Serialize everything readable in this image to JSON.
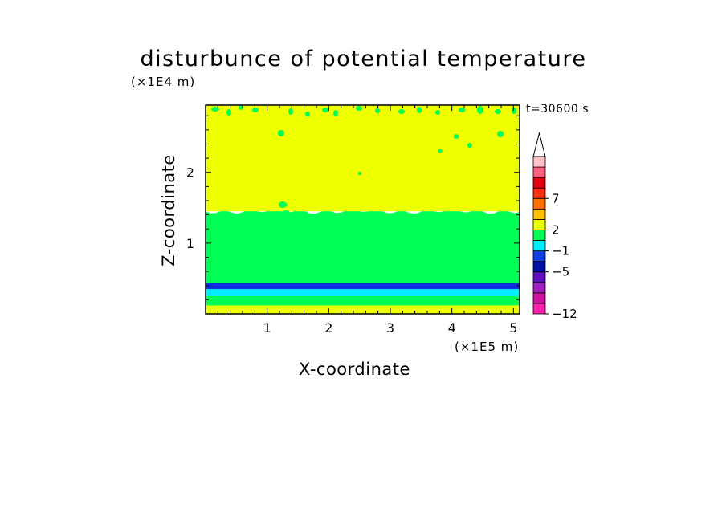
{
  "chart_data": {
    "type": "heatmap",
    "title": "disturbunce of potential temperature",
    "xlabel": "X-coordinate",
    "ylabel": "Z-coordinate",
    "x_scale_note": "(×1E5 m)",
    "y_scale_note": "(×1E4 m)",
    "time_label": "t=30600 s",
    "xlim": [
      0,
      5.1
    ],
    "ylim": [
      0,
      2.95
    ],
    "x_ticks": [
      1,
      2,
      3,
      4,
      5
    ],
    "x_tick_labels": [
      "1",
      "2",
      "3",
      "4",
      "5"
    ],
    "y_ticks": [
      1,
      2
    ],
    "y_tick_labels": [
      "1",
      "2"
    ],
    "layers": [
      {
        "z_bottom": 0.0,
        "z_top": 0.12,
        "value_range": [
          0,
          1
        ],
        "color": "#eeff00"
      },
      {
        "z_bottom": 0.12,
        "z_top": 0.25,
        "value_range": [
          -1,
          0
        ],
        "color": "#00ff55"
      },
      {
        "z_bottom": 0.25,
        "z_top": 0.35,
        "value_range": [
          -2,
          -1
        ],
        "color": "#00eeff"
      },
      {
        "z_bottom": 0.35,
        "z_top": 0.44,
        "value_range": [
          -4,
          -3
        ],
        "color": "#1030e0"
      },
      {
        "z_bottom": 0.44,
        "z_top": 1.45,
        "value_range": [
          -1,
          0
        ],
        "color": "#00ff55"
      },
      {
        "z_bottom": 1.45,
        "z_top": 2.95,
        "value_range": [
          0,
          1
        ],
        "color": "#eeff00"
      }
    ],
    "colorbar": {
      "labels": [
        {
          "level": 7,
          "text": "7"
        },
        {
          "level": 2,
          "text": "2"
        },
        {
          "level": -1,
          "text": "−1"
        },
        {
          "level": -5,
          "text": "−5"
        },
        {
          "level": -12,
          "text": "−12"
        }
      ],
      "segments": [
        {
          "color": "#ff20b0"
        },
        {
          "color": "#d010a0"
        },
        {
          "color": "#a020c0"
        },
        {
          "color": "#6010c0"
        },
        {
          "color": "#0010a0"
        },
        {
          "color": "#1040e0"
        },
        {
          "color": "#00eeff"
        },
        {
          "color": "#00ff55"
        },
        {
          "color": "#eeff00"
        },
        {
          "color": "#ffc000"
        },
        {
          "color": "#ff7000"
        },
        {
          "color": "#ff3010"
        },
        {
          "color": "#e00010"
        },
        {
          "color": "#ff6080"
        },
        {
          "color": "#ffc0c8"
        }
      ],
      "extend_top_color": "#ffffff"
    }
  }
}
